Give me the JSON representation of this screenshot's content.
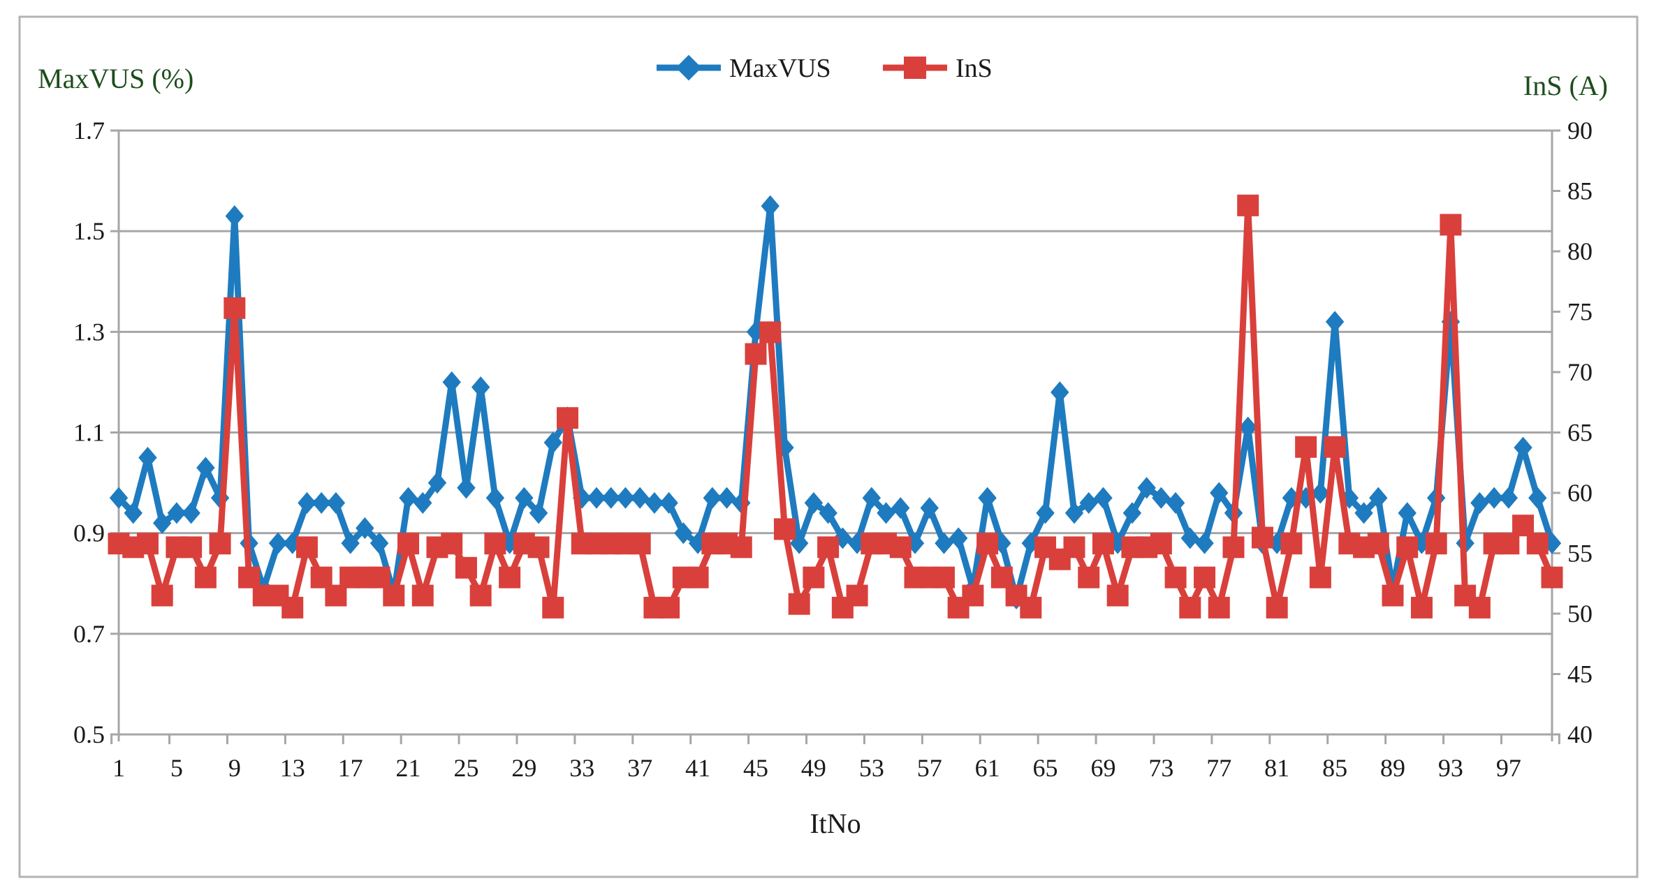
{
  "chart_data": {
    "type": "line",
    "xlabel": "ItNo",
    "ylabel_left": "MaxVUS (%)",
    "ylabel_right": "InS (A)",
    "ylim_left": [
      0.5,
      1.7
    ],
    "ylim_right": [
      40,
      90
    ],
    "yticks_left": [
      "0.5",
      "0.7",
      "0.9",
      "1.1",
      "1.3",
      "1.5",
      "1.7"
    ],
    "yticks_right": [
      "40",
      "45",
      "50",
      "55",
      "60",
      "65",
      "70",
      "75",
      "80",
      "85",
      "90"
    ],
    "xlim": [
      1,
      100
    ],
    "xticks": [
      "1",
      "5",
      "9",
      "13",
      "17",
      "21",
      "25",
      "29",
      "33",
      "37",
      "41",
      "45",
      "49",
      "53",
      "57",
      "61",
      "65",
      "69",
      "73",
      "77",
      "81",
      "85",
      "89",
      "93",
      "97"
    ],
    "legend_position": "top-center",
    "grid": true,
    "colors": {
      "maxvus": "#1f7bbf",
      "ins": "#d9403b",
      "axis_title": "#1d4d1d",
      "grid": "#a6a6a6"
    },
    "series": [
      {
        "name": "MaxVUS",
        "axis": "left",
        "marker": "diamond",
        "values": [
          0.97,
          0.94,
          1.05,
          0.92,
          0.94,
          0.94,
          1.03,
          0.97,
          1.53,
          0.88,
          0.79,
          0.88,
          0.88,
          0.96,
          0.96,
          0.96,
          0.88,
          0.91,
          0.88,
          0.78,
          0.97,
          0.96,
          1.0,
          1.2,
          0.99,
          1.19,
          0.97,
          0.88,
          0.97,
          0.94,
          1.08,
          1.13,
          0.97,
          0.97,
          0.97,
          0.97,
          0.97,
          0.96,
          0.96,
          0.9,
          0.88,
          0.97,
          0.97,
          0.96,
          1.3,
          1.55,
          1.07,
          0.88,
          0.96,
          0.94,
          0.89,
          0.88,
          0.97,
          0.94,
          0.95,
          0.88,
          0.95,
          0.88,
          0.89,
          0.79,
          0.97,
          0.88,
          0.77,
          0.88,
          0.94,
          1.18,
          0.94,
          0.96,
          0.97,
          0.88,
          0.94,
          0.99,
          0.97,
          0.96,
          0.89,
          0.88,
          0.98,
          0.94,
          1.11,
          0.88,
          0.88,
          0.97,
          0.97,
          0.98,
          1.32,
          0.97,
          0.94,
          0.97,
          0.79,
          0.94,
          0.88,
          0.97,
          1.32,
          0.88,
          0.96,
          0.97,
          0.97,
          1.07,
          0.97,
          0.88
        ]
      },
      {
        "name": "InS",
        "axis": "right",
        "marker": "square",
        "values": [
          55.8,
          55.5,
          55.8,
          51.5,
          55.5,
          55.5,
          53.0,
          55.8,
          75.3,
          53.0,
          51.5,
          51.5,
          50.5,
          55.5,
          53.0,
          51.5,
          53.0,
          53.0,
          53.0,
          51.5,
          55.8,
          51.5,
          55.5,
          55.8,
          53.8,
          51.5,
          55.8,
          53.0,
          55.8,
          55.5,
          50.5,
          66.2,
          55.8,
          55.8,
          55.8,
          55.8,
          55.8,
          50.5,
          50.5,
          53.0,
          53.0,
          55.8,
          55.8,
          55.5,
          71.5,
          73.3,
          57.0,
          50.8,
          53.0,
          55.5,
          50.5,
          51.5,
          55.8,
          55.8,
          55.5,
          53.0,
          53.0,
          53.0,
          50.5,
          51.5,
          55.8,
          53.0,
          51.5,
          50.5,
          55.5,
          54.5,
          55.5,
          53.0,
          55.8,
          51.5,
          55.5,
          55.5,
          55.8,
          53.0,
          50.5,
          53.0,
          50.5,
          55.5,
          83.8,
          56.3,
          50.5,
          55.8,
          63.8,
          53.0,
          63.8,
          55.8,
          55.5,
          55.8,
          51.5,
          55.5,
          50.5,
          55.8,
          82.2,
          51.5,
          50.5,
          55.8,
          55.8,
          57.3,
          55.8,
          53.0
        ]
      }
    ]
  }
}
